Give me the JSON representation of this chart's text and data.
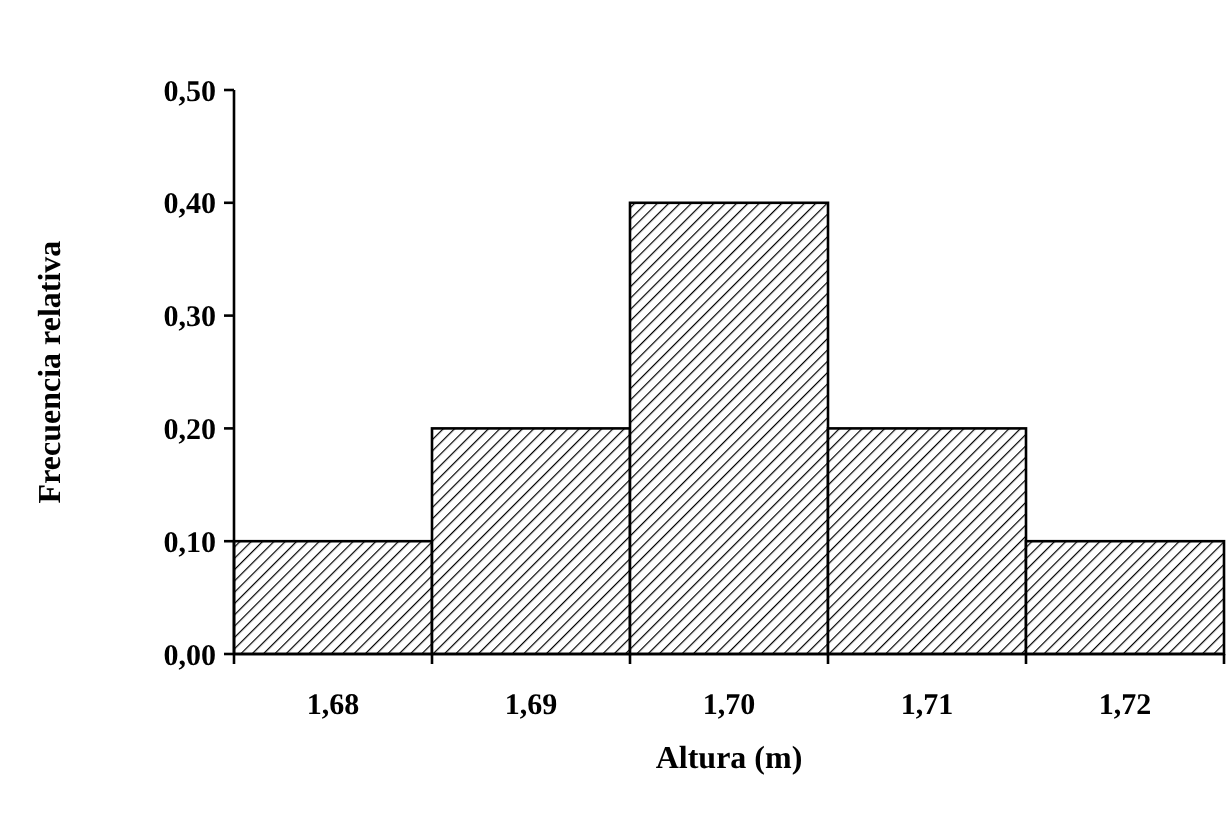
{
  "chart_data": {
    "type": "bar",
    "xlabel": "Altura (m)",
    "ylabel": "Frecuencia relativa",
    "color": "#000000",
    "categories": [
      "1,68",
      "1,69",
      "1,70",
      "1,71",
      "1,72"
    ],
    "values": [
      0.1,
      0.2,
      0.4,
      0.2,
      0.1
    ],
    "ylim": [
      0,
      0.5
    ],
    "yticks": [
      {
        "value": 0,
        "label": "0,00"
      },
      {
        "value": 0.1,
        "label": "0,10"
      },
      {
        "value": 0.2,
        "label": "0,20"
      },
      {
        "value": 0.3,
        "label": "0,30"
      },
      {
        "value": 0.4,
        "label": "0,40"
      },
      {
        "value": 0.5,
        "label": "0,50"
      }
    ]
  }
}
